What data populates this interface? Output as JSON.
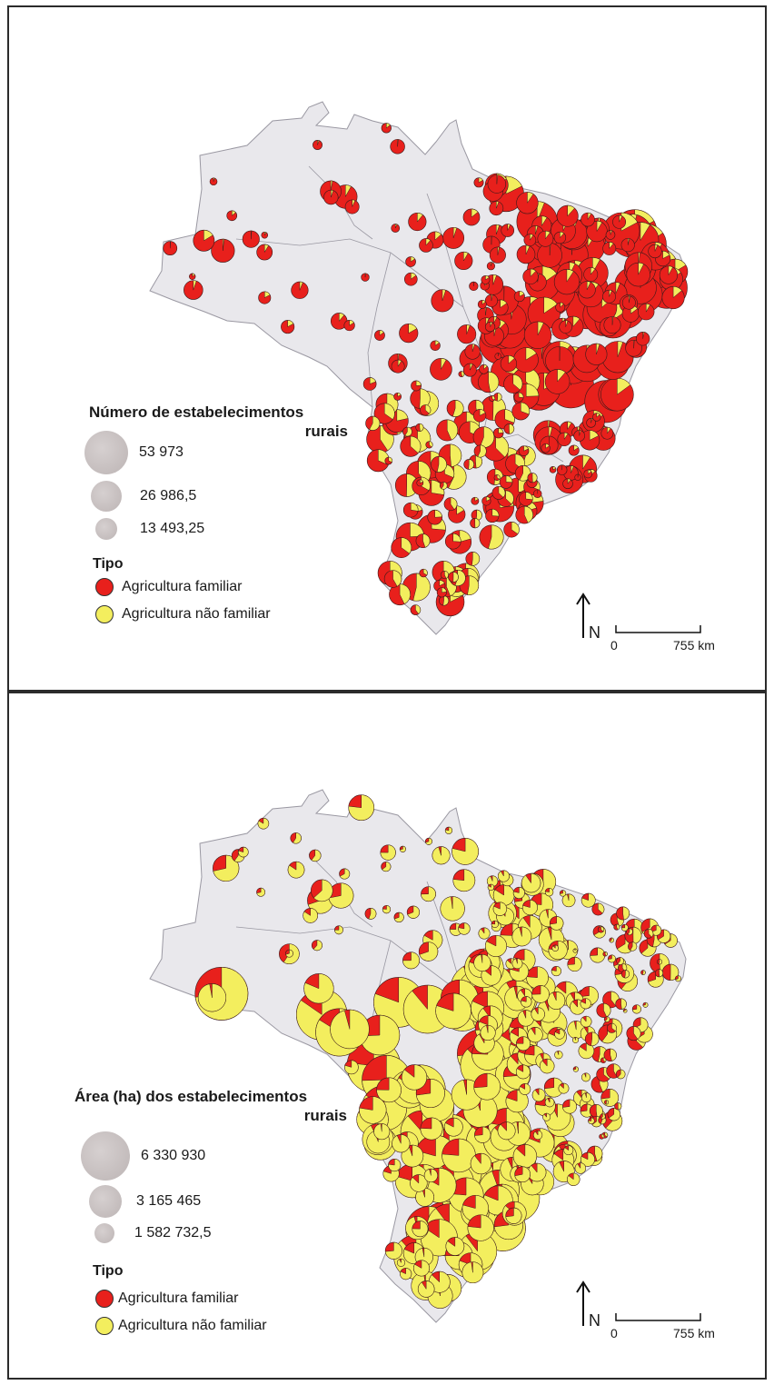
{
  "maps": [
    {
      "legend_title_line1": "Número de estabelecimentos",
      "legend_title_line2": "rurais",
      "sizes": [
        {
          "label": "53 973"
        },
        {
          "label": "26 986,5"
        },
        {
          "label": "13 493,25"
        }
      ],
      "tipo_title": "Tipo",
      "tipos": [
        {
          "label": "Agricultura familiar",
          "color": "#e8201c"
        },
        {
          "label": "Agricultura não familiar",
          "color": "#f3ee5e"
        }
      ],
      "north_label": "N",
      "scale_start": "0",
      "scale_end": "755 km",
      "dominant": "familiar"
    },
    {
      "legend_title_line1": "Área (ha) dos estabelecimentos",
      "legend_title_line2": "rurais",
      "sizes": [
        {
          "label": "6 330 930"
        },
        {
          "label": "3 165 465"
        },
        {
          "label": "1 582 732,5"
        }
      ],
      "tipo_title": "Tipo",
      "tipos": [
        {
          "label": "Agricultura familiar",
          "color": "#e8201c"
        },
        {
          "label": "Agricultura não familiar",
          "color": "#f3ee5e"
        }
      ],
      "north_label": "N",
      "scale_start": "0",
      "scale_end": "755 km",
      "dominant": "nao_familiar"
    }
  ],
  "colors": {
    "familiar": "#e8201c",
    "nao_familiar": "#f3ee5e",
    "land": "#e9e8ec",
    "border": "#9a98a2",
    "size_symbol": "#c8c0c0"
  }
}
